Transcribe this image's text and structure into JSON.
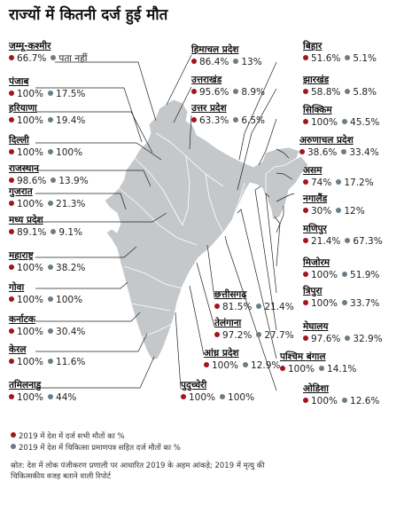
{
  "title": "राज्यों में कितनी दर्ज हुई मौत",
  "colors": {
    "red": "#a3141c",
    "grey": "#6b7c86",
    "map": "#c4c8cb",
    "line": "#222222"
  },
  "states": [
    {
      "name": "जम्मू-कश्मीर",
      "a": "66.7%",
      "b": "पता नहीं"
    },
    {
      "name": "पंजाब",
      "a": "100%",
      "b": "17.5%"
    },
    {
      "name": "हरियाणा",
      "a": "100%",
      "b": "19.4%"
    },
    {
      "name": "दिल्ली",
      "a": "100%",
      "b": "100%"
    },
    {
      "name": "राजस्थान",
      "a": "98.6%",
      "b": "13.9%"
    },
    {
      "name": "गुजरात",
      "a": "100%",
      "b": "21.3%"
    },
    {
      "name": "मध्य प्रदेश",
      "a": "89.1%",
      "b": "9.1%"
    },
    {
      "name": "महाराष्ट्र",
      "a": "100%",
      "b": "38.2%"
    },
    {
      "name": "गोवा",
      "a": "100%",
      "b": "100%"
    },
    {
      "name": "कर्नाटक",
      "a": "100%",
      "b": "30.4%"
    },
    {
      "name": "केरल",
      "a": "100%",
      "b": "11.6%"
    },
    {
      "name": "तमिलनाडु",
      "a": "100%",
      "b": "44%"
    },
    {
      "name": "हिमाचल प्रदेश",
      "a": "86.4%",
      "b": "13%"
    },
    {
      "name": "उत्तराखंड",
      "a": "95.6%",
      "b": "8.9%"
    },
    {
      "name": "उत्तर प्रदेश",
      "a": "63.3%",
      "b": "6.5%"
    },
    {
      "name": "छत्तीसगढ़",
      "a": "81.5%",
      "b": "21.4%"
    },
    {
      "name": "तेलंगाना",
      "a": "97.2%",
      "b": "27.7%"
    },
    {
      "name": "आंध्र प्रदेश",
      "a": "100%",
      "b": "12.9%"
    },
    {
      "name": "पुदुच्चेरी",
      "a": "100%",
      "b": "100%"
    },
    {
      "name": "बिहार",
      "a": "51.6%",
      "b": "5.1%"
    },
    {
      "name": "झारखंड",
      "a": "58.8%",
      "b": "5.8%"
    },
    {
      "name": "सिक्किम",
      "a": "100%",
      "b": "45.5%"
    },
    {
      "name": "अरुणाचल प्रदेश",
      "a": "38.6%",
      "b": "33.4%"
    },
    {
      "name": "असम",
      "a": "74%",
      "b": "17.2%"
    },
    {
      "name": "नगालैंड",
      "a": "30%",
      "b": "12%"
    },
    {
      "name": "मणिपुर",
      "a": "21.4%",
      "b": "67.3%"
    },
    {
      "name": "मिजोरम",
      "a": "100%",
      "b": "51.9%"
    },
    {
      "name": "त्रिपुरा",
      "a": "100%",
      "b": "33.7%"
    },
    {
      "name": "मेघालय",
      "a": "97.6%",
      "b": "32.9%"
    },
    {
      "name": "पश्चिम बंगाल",
      "a": "100%",
      "b": "14.1%"
    },
    {
      "name": "ओडिशा",
      "a": "100%",
      "b": "12.6%"
    }
  ],
  "legend": {
    "red": "2019 में देश में दर्ज सभी मौतों का %",
    "grey": "2019 में देश में चिकित्सा प्रमाणपत्र सहित दर्ज मौतों का %"
  },
  "source": "स्रोत: देश में लोक पंजीकरण प्रणाली पर आधारित 2019 के अहम आंकड़े; 2019 में मृत्यु की चिकित्सकीय वजह बताने वाली रिपोर्ट"
}
